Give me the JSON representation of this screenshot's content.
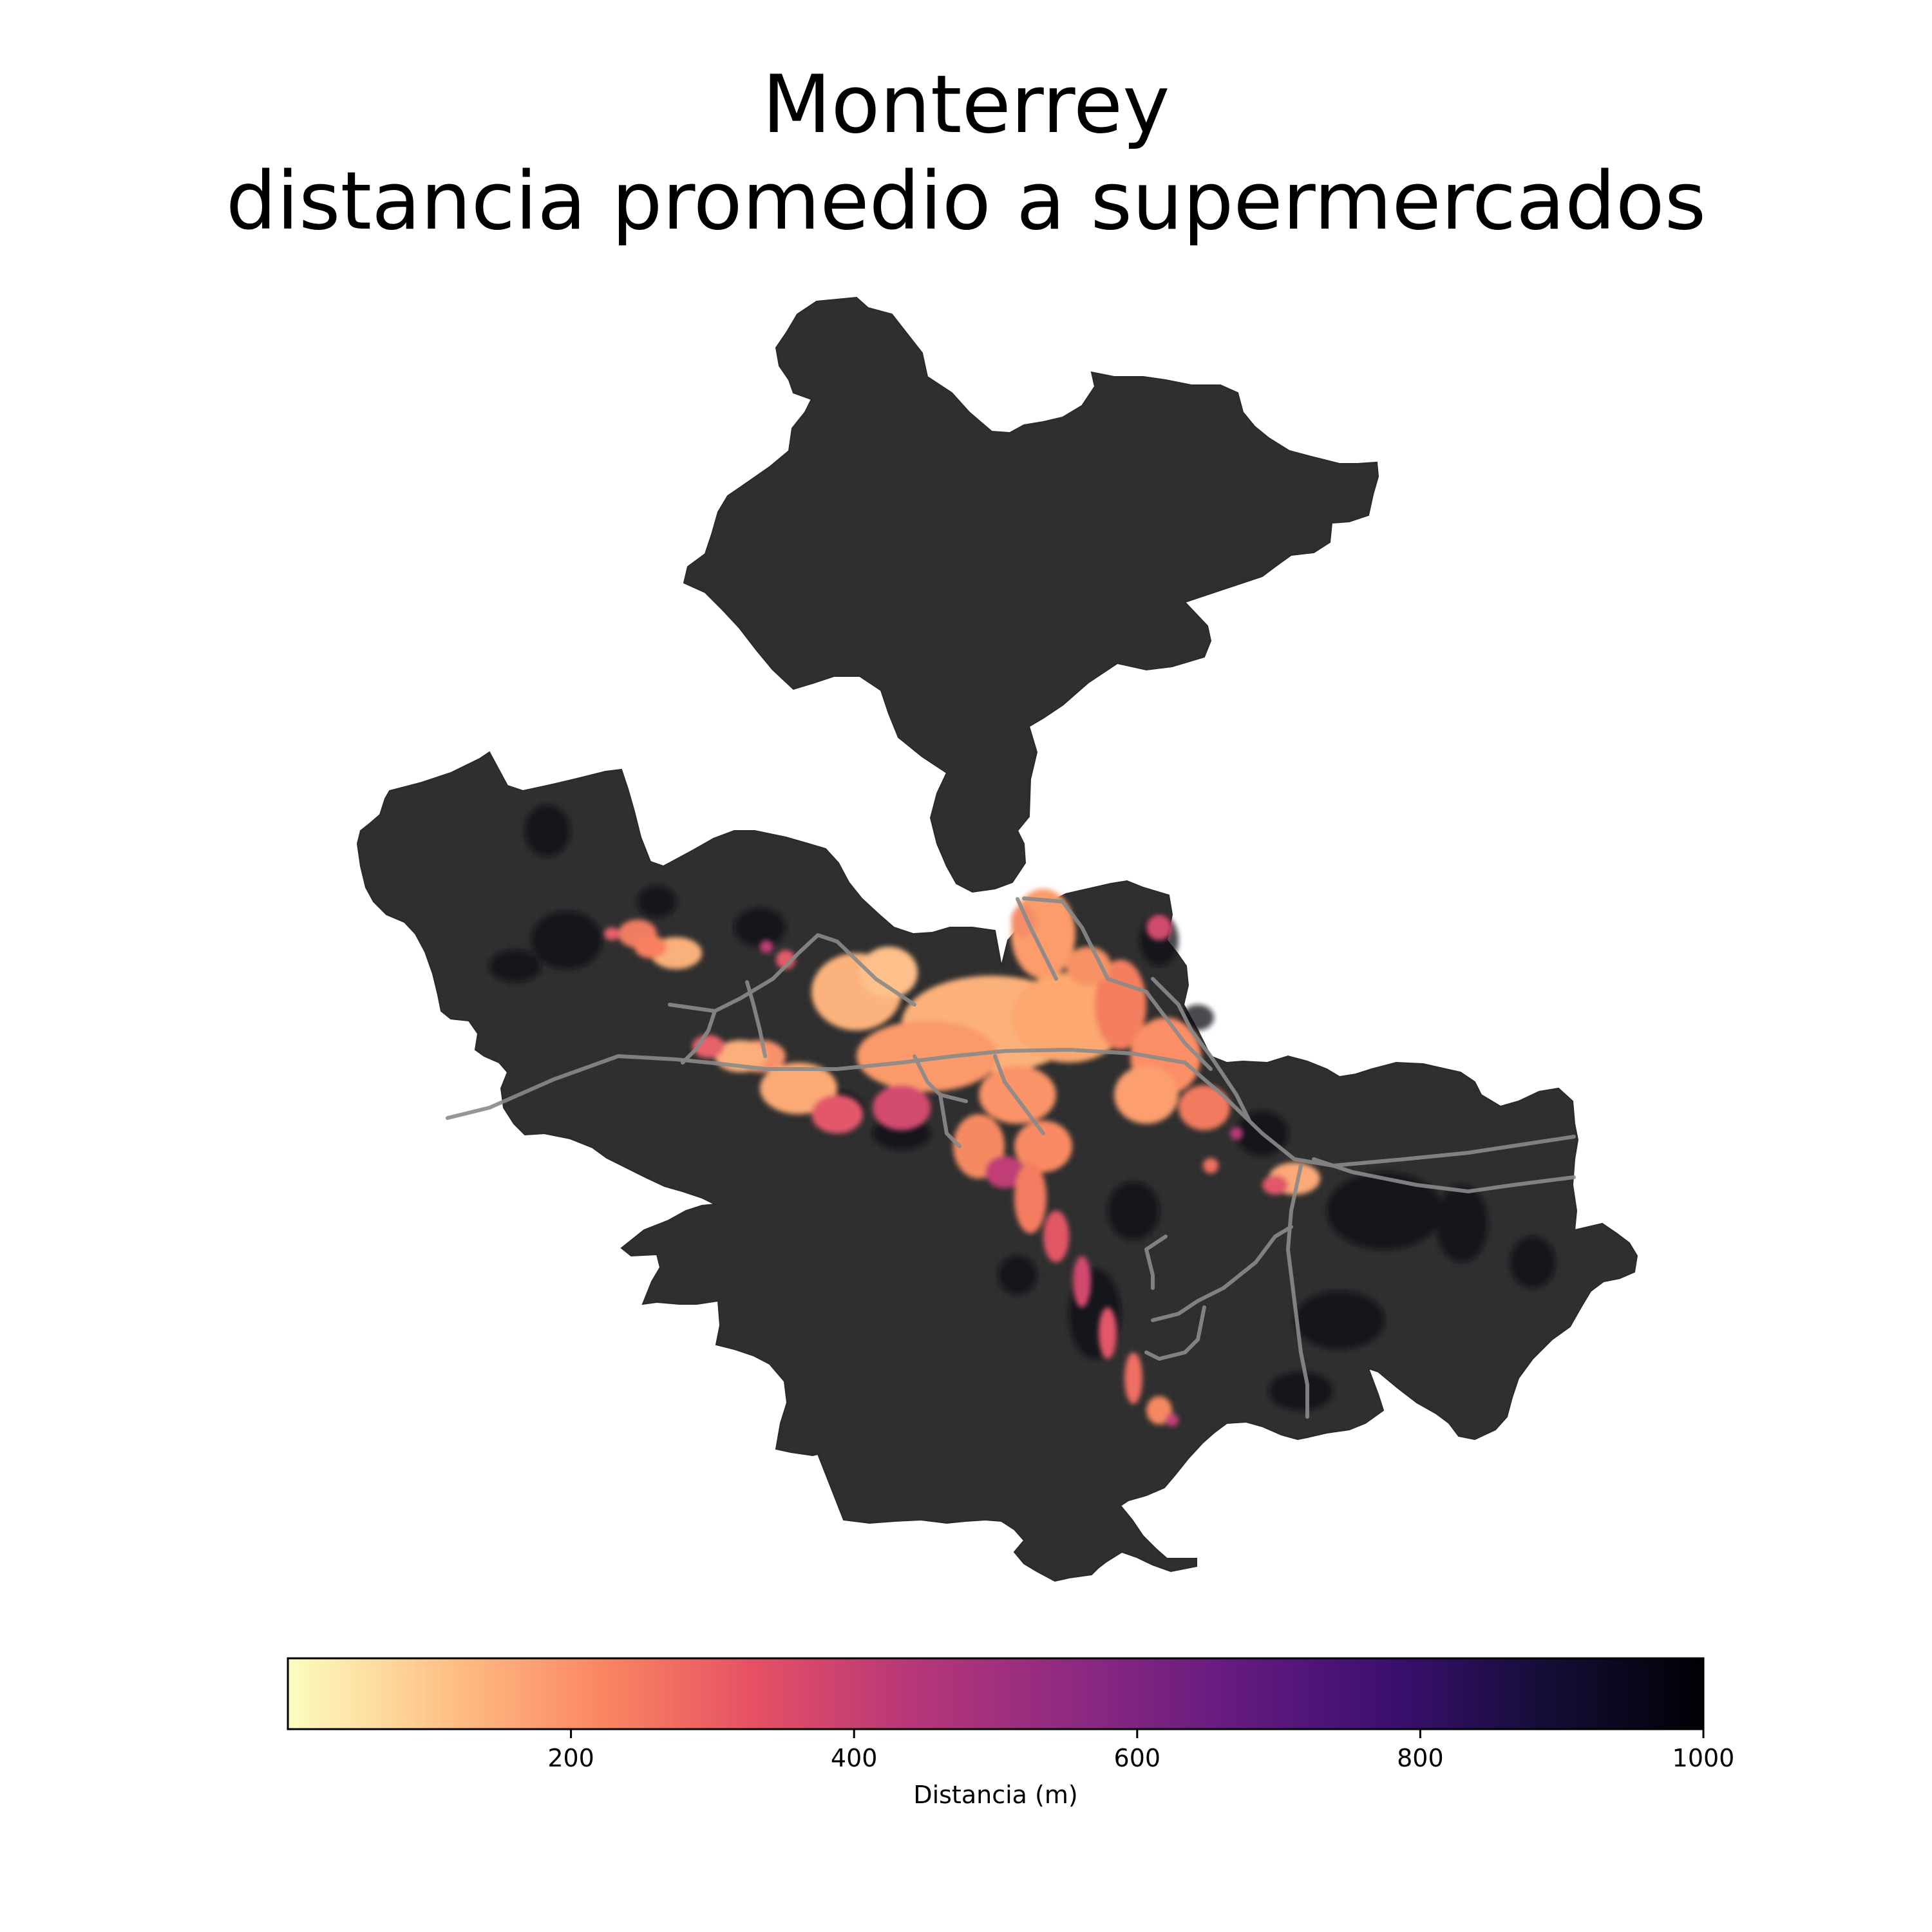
{
  "title": {
    "line1": "Monterrey",
    "line2": "distancia promedio a supermercados"
  },
  "map": {
    "region_color": "#2e2e2e",
    "road_color": "#8a8a8a",
    "no_data_color": "#000004",
    "colormap": "magma_r"
  },
  "colorbar": {
    "label": "Distancia (m)",
    "min": 0,
    "max": 1000,
    "ticks": [
      {
        "value": 200,
        "label": "200"
      },
      {
        "value": 400,
        "label": "400"
      },
      {
        "value": 600,
        "label": "600"
      },
      {
        "value": 800,
        "label": "800"
      },
      {
        "value": 1000,
        "label": "1000"
      }
    ],
    "stops": [
      "#fcfdbf",
      "#fec287",
      "#fb8761",
      "#e55064",
      "#b73779",
      "#8c2981",
      "#641a80",
      "#3b0f70",
      "#140e36",
      "#000004"
    ]
  }
}
